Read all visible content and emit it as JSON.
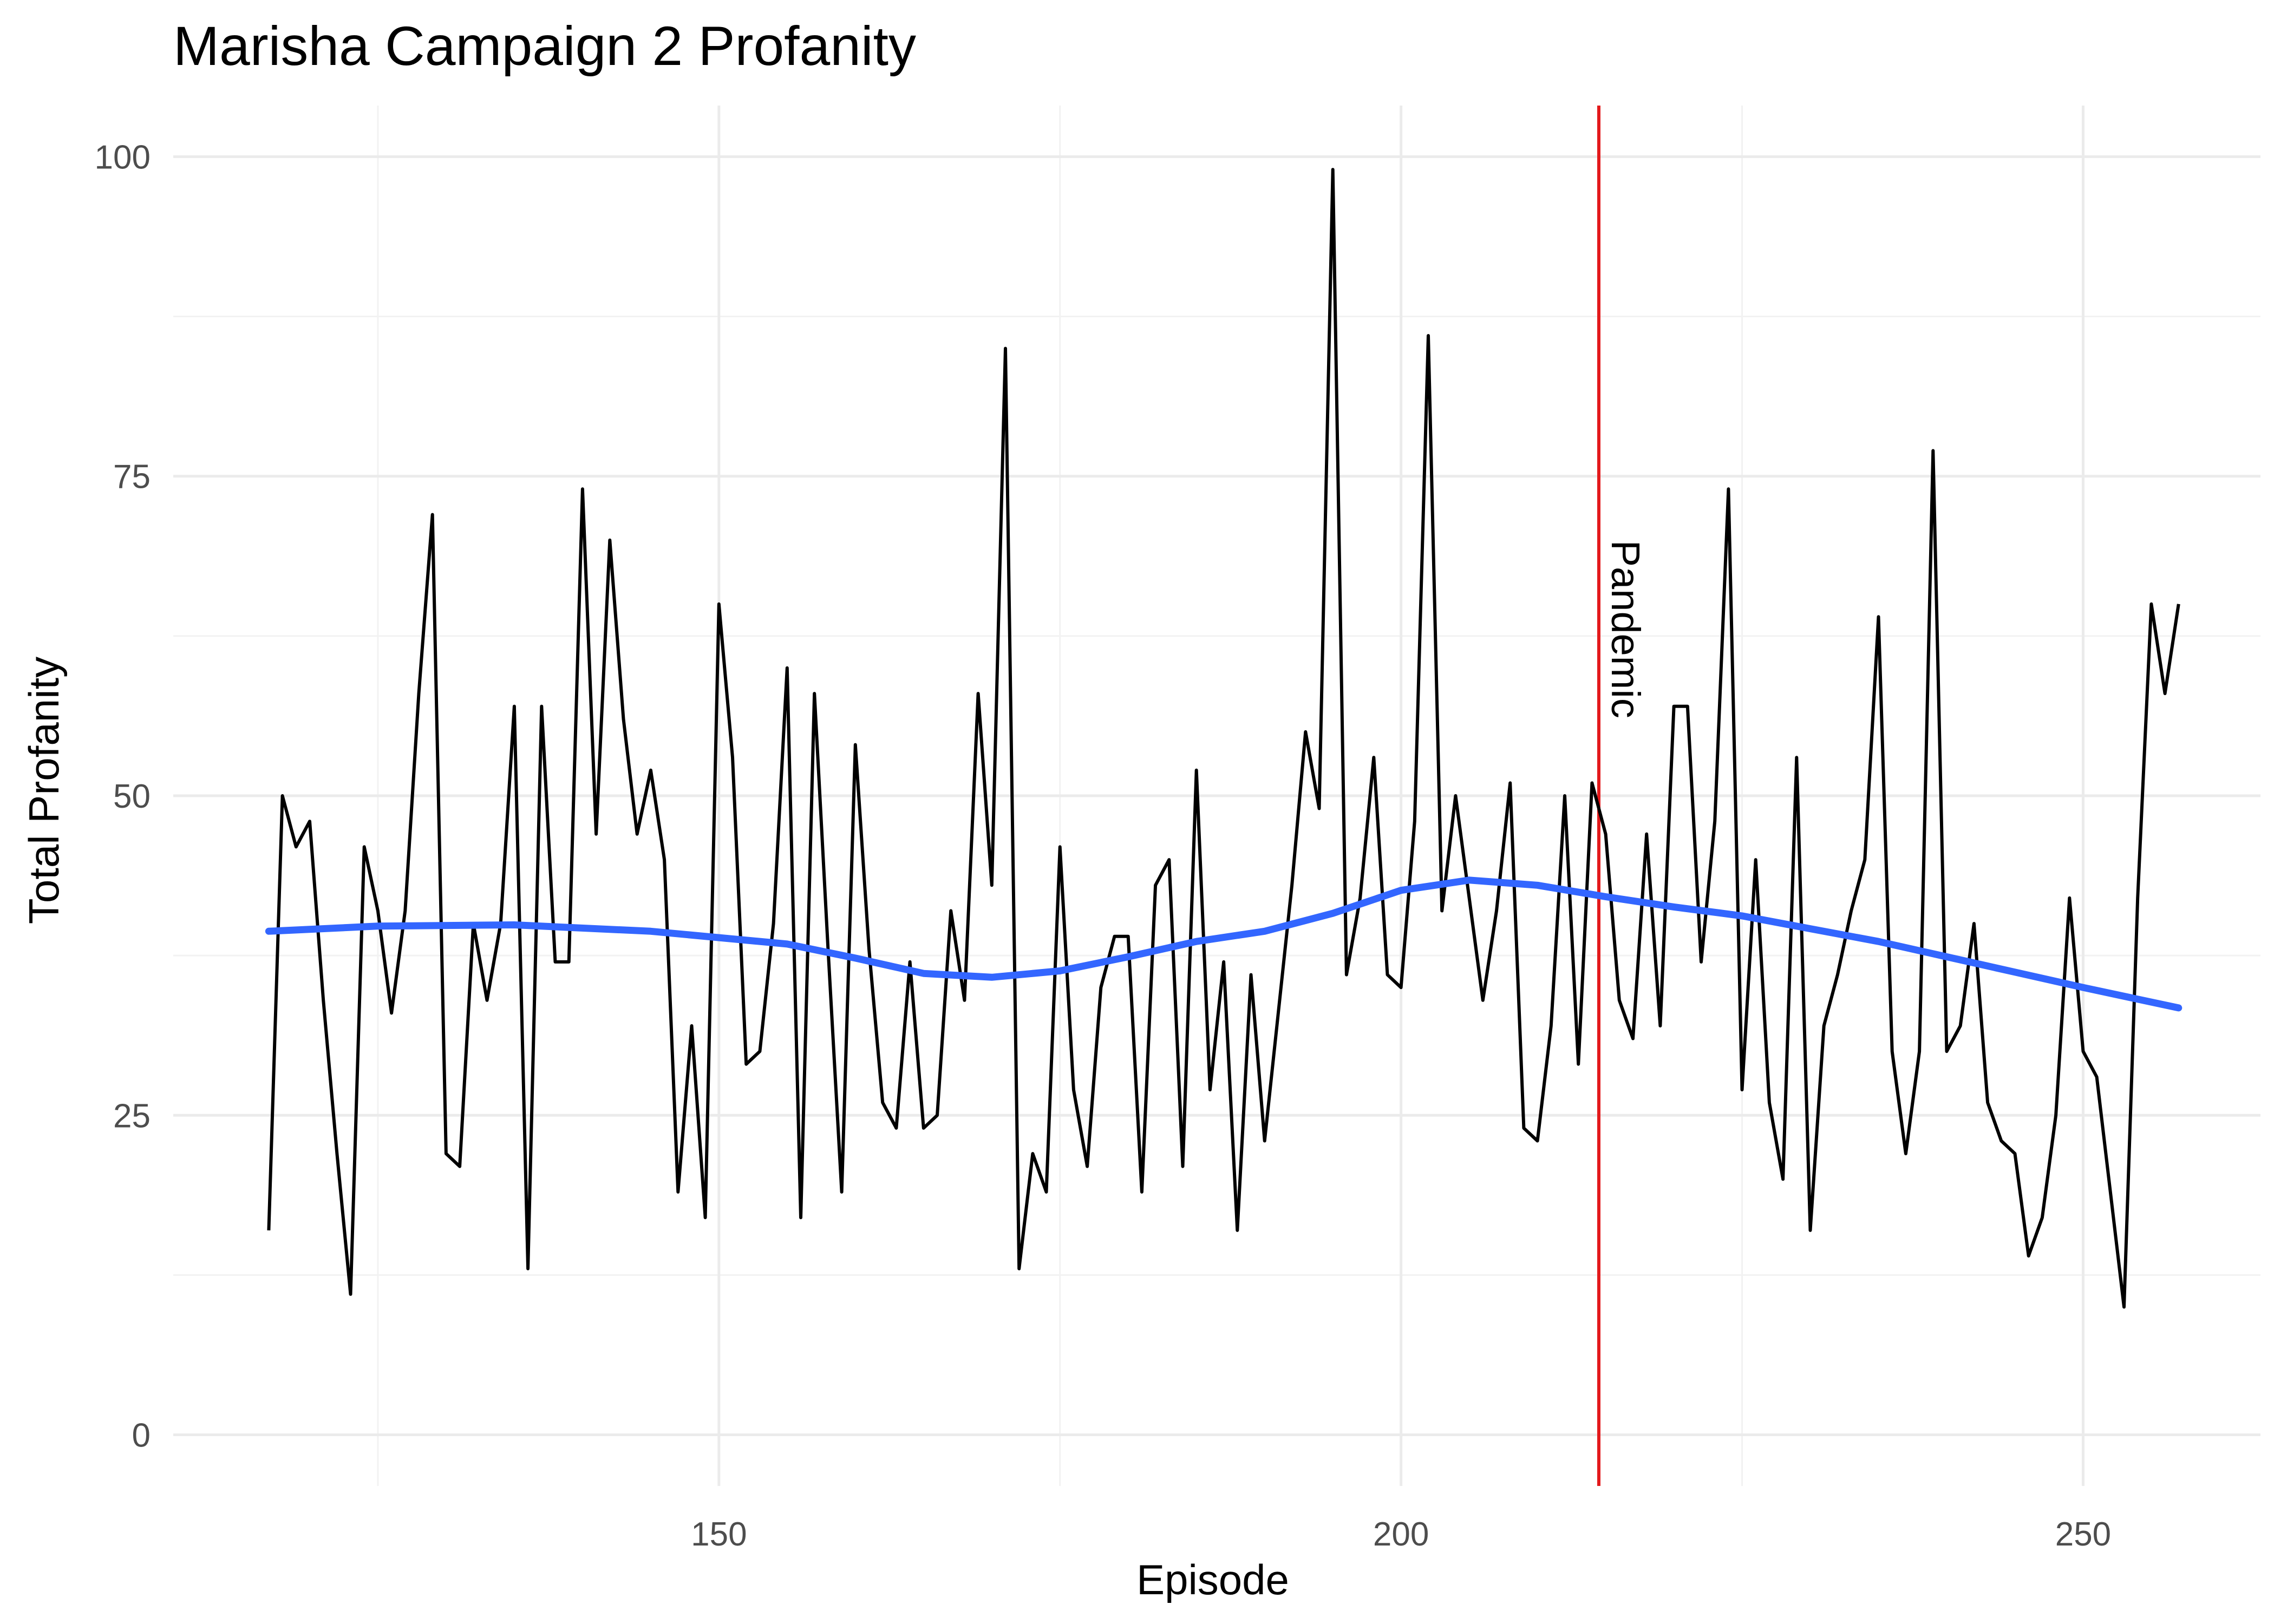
{
  "chart_data": {
    "type": "line",
    "title": "Marisha Campaign 2 Profanity",
    "xlabel": "Episode",
    "ylabel": "Total Profanity",
    "xlim": [
      110,
      263
    ],
    "ylim": [
      -4,
      104
    ],
    "x_ticks": [
      150,
      200,
      250
    ],
    "x_tick_labels": [
      "150",
      "200",
      "250"
    ],
    "y_ticks": [
      0,
      25,
      50,
      75,
      100
    ],
    "y_tick_labels": [
      "0",
      "25",
      "50",
      "75",
      "100"
    ],
    "grid": true,
    "colors": {
      "series": "#000000",
      "trend": "#3366FF",
      "vline": "#E31A1C",
      "grid": "#EBEBEB"
    },
    "series": [
      {
        "x": [
          117,
          118,
          119,
          120,
          121,
          122,
          123,
          124,
          125,
          126,
          127,
          128,
          129,
          130,
          131,
          132,
          133,
          134,
          135,
          136,
          137,
          138,
          139,
          140,
          141,
          142,
          143,
          144,
          145,
          146,
          147,
          148,
          149,
          150,
          151,
          152,
          153,
          154,
          155,
          156,
          157,
          158,
          159,
          160,
          161,
          162,
          163,
          164,
          165,
          166,
          167,
          168,
          169,
          170,
          171,
          172,
          173,
          174,
          175,
          176,
          177,
          178,
          179,
          180,
          181,
          182,
          183,
          184,
          185,
          186,
          187,
          188,
          189,
          190,
          191,
          192,
          193,
          194,
          195,
          196,
          197,
          198,
          199,
          200,
          201,
          202,
          203,
          204,
          205,
          206,
          207,
          208,
          209,
          210,
          211,
          212,
          213,
          214,
          215,
          216,
          217,
          218,
          219,
          220,
          221,
          222,
          223,
          224,
          225,
          226,
          227,
          228,
          229,
          230,
          231,
          232,
          233,
          234,
          235,
          236,
          237,
          238,
          239,
          240,
          241,
          242,
          243,
          244,
          245,
          246,
          247,
          248,
          249,
          250,
          251,
          252,
          253,
          254,
          255,
          256,
          257
        ],
        "values": [
          16,
          50,
          46,
          48,
          34,
          22,
          11,
          46,
          41,
          33,
          41,
          58,
          72,
          22,
          21,
          40,
          34,
          40,
          57,
          13,
          57,
          37,
          37,
          74,
          47,
          70,
          56,
          47,
          52,
          45,
          19,
          32,
          17,
          65,
          53,
          29,
          30,
          40,
          60,
          17,
          58,
          38,
          19,
          54,
          38,
          26,
          24,
          37,
          24,
          25,
          41,
          34,
          58,
          43,
          85,
          13,
          22,
          19,
          46,
          27,
          21,
          35,
          39,
          39,
          19,
          43,
          45,
          21,
          52,
          27,
          37,
          16,
          36,
          23,
          33,
          43,
          55,
          49,
          99,
          36,
          42,
          53,
          36,
          35,
          48,
          86,
          41,
          50,
          42,
          34,
          41,
          51,
          24,
          23,
          32,
          50,
          29,
          51,
          47,
          34,
          31,
          47,
          32,
          57,
          57,
          37,
          48,
          74,
          27,
          45,
          26,
          20,
          53,
          16,
          32,
          36,
          41,
          45,
          64,
          30,
          22,
          30,
          77,
          30,
          32,
          40,
          26,
          23,
          22,
          14,
          17,
          25,
          42,
          30,
          28,
          19,
          10,
          42,
          65,
          58,
          65
        ]
      },
      {
        "x": [
          117,
          125,
          135,
          145,
          155,
          160,
          165,
          170,
          175,
          180,
          185,
          190,
          195,
          200,
          205,
          210,
          215,
          220,
          225,
          230,
          235,
          240,
          245,
          250,
          257
        ],
        "values": [
          39.4,
          39.8,
          39.9,
          39.4,
          38.4,
          37.3,
          36.1,
          35.8,
          36.3,
          37.4,
          38.6,
          39.4,
          40.8,
          42.6,
          43.4,
          43.0,
          42.1,
          41.3,
          40.6,
          39.6,
          38.6,
          37.4,
          36.2,
          35.0,
          33.4
        ]
      }
    ],
    "vline": {
      "x": 214.5,
      "label": "Pandemic"
    }
  }
}
